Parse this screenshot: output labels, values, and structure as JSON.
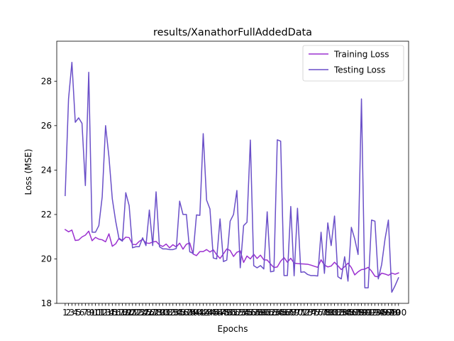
{
  "chart_data": {
    "type": "line",
    "title": "results/XanathorFullAddedData",
    "xlabel": "Epochs",
    "ylabel": "Loss (MSE)",
    "xlim": [
      -1.5,
      103
    ],
    "ylim": [
      18,
      29.8
    ],
    "yticks": [
      18,
      20,
      22,
      24,
      26,
      28
    ],
    "x": [
      1,
      2,
      3,
      4,
      5,
      6,
      7,
      8,
      9,
      10,
      11,
      12,
      13,
      14,
      15,
      16,
      17,
      18,
      19,
      20,
      21,
      22,
      23,
      24,
      25,
      26,
      27,
      28,
      29,
      30,
      31,
      32,
      33,
      34,
      35,
      36,
      37,
      38,
      39,
      40,
      41,
      42,
      43,
      44,
      45,
      46,
      47,
      48,
      49,
      50,
      51,
      52,
      53,
      54,
      55,
      56,
      57,
      58,
      59,
      60,
      61,
      62,
      63,
      64,
      65,
      66,
      67,
      68,
      69,
      70,
      71,
      72,
      73,
      74,
      75,
      76,
      77,
      78,
      79,
      80,
      81,
      82,
      83,
      84,
      85,
      86,
      87,
      88,
      89,
      90,
      91,
      92,
      93,
      94,
      95,
      96,
      97,
      98,
      99,
      100
    ],
    "xticks": [
      1,
      2,
      3,
      4,
      5,
      6,
      7,
      8,
      9,
      10,
      11,
      12,
      13,
      14,
      15,
      16,
      17,
      18,
      19,
      20,
      21,
      22,
      23,
      24,
      25,
      26,
      27,
      28,
      29,
      30,
      31,
      32,
      33,
      34,
      35,
      36,
      37,
      38,
      39,
      40,
      41,
      42,
      43,
      44,
      45,
      46,
      47,
      48,
      49,
      50,
      51,
      52,
      53,
      54,
      55,
      56,
      57,
      58,
      59,
      60,
      61,
      62,
      63,
      64,
      65,
      66,
      67,
      68,
      69,
      70,
      71,
      72,
      73,
      74,
      75,
      76,
      77,
      78,
      79,
      80,
      81,
      82,
      83,
      84,
      85,
      86,
      87,
      88,
      89,
      90,
      91,
      92,
      93,
      94,
      95,
      96,
      97,
      98,
      99,
      100
    ],
    "legend_position": "top-right",
    "series": [
      {
        "name": "Training Loss",
        "color": "#9b30d0",
        "values": [
          21.32,
          21.22,
          21.3,
          20.83,
          20.85,
          20.99,
          21.07,
          21.25,
          20.82,
          20.97,
          20.89,
          20.86,
          20.77,
          21.13,
          20.57,
          20.68,
          20.93,
          20.83,
          20.98,
          20.96,
          20.66,
          20.64,
          20.79,
          20.88,
          20.72,
          20.7,
          20.76,
          20.79,
          20.63,
          20.56,
          20.67,
          20.5,
          20.64,
          20.54,
          20.71,
          20.44,
          20.66,
          20.72,
          20.22,
          20.15,
          20.33,
          20.33,
          20.42,
          20.31,
          20.41,
          20.19,
          20.02,
          20.23,
          20.45,
          20.38,
          20.11,
          20.3,
          20.36,
          19.84,
          20.13,
          20.0,
          20.21,
          20.02,
          20.17,
          19.96,
          19.95,
          19.77,
          19.61,
          19.64,
          19.9,
          20.06,
          19.85,
          20.03,
          19.81,
          19.79,
          19.78,
          19.77,
          19.76,
          19.72,
          19.67,
          19.62,
          19.96,
          19.72,
          19.64,
          19.68,
          19.85,
          19.69,
          19.52,
          19.65,
          19.81,
          19.61,
          19.28,
          19.42,
          19.52,
          19.54,
          19.62,
          19.45,
          19.22,
          19.19,
          19.36,
          19.32,
          19.26,
          19.36,
          19.31,
          19.37
        ]
      },
      {
        "name": "Testing Loss",
        "color": "#6a4fc8",
        "values": [
          22.85,
          27.2,
          28.85,
          26.15,
          26.35,
          26.1,
          23.3,
          28.4,
          21.2,
          21.2,
          21.5,
          22.8,
          26.0,
          24.6,
          22.7,
          21.7,
          20.9,
          20.8,
          22.98,
          22.4,
          20.5,
          20.55,
          20.55,
          20.95,
          20.6,
          22.2,
          20.6,
          23.02,
          20.55,
          20.45,
          20.45,
          20.42,
          20.42,
          20.47,
          22.6,
          22.0,
          22.0,
          20.32,
          20.25,
          21.98,
          21.96,
          25.64,
          22.65,
          22.25,
          20.04,
          20.0,
          21.8,
          19.88,
          19.95,
          21.7,
          22.0,
          23.08,
          19.6,
          21.5,
          21.65,
          25.35,
          19.7,
          19.6,
          19.7,
          19.55,
          22.12,
          19.42,
          19.45,
          25.36,
          25.3,
          19.25,
          19.25,
          22.36,
          19.24,
          22.28,
          19.4,
          19.42,
          19.3,
          19.25,
          19.25,
          19.23,
          21.2,
          19.35,
          21.62,
          20.6,
          21.93,
          19.2,
          19.1,
          20.1,
          19.0,
          21.42,
          20.9,
          20.2,
          27.2,
          18.7,
          18.7,
          21.75,
          21.7,
          19.1,
          19.75,
          20.9,
          21.75,
          18.5,
          18.8,
          19.15
        ]
      }
    ]
  }
}
